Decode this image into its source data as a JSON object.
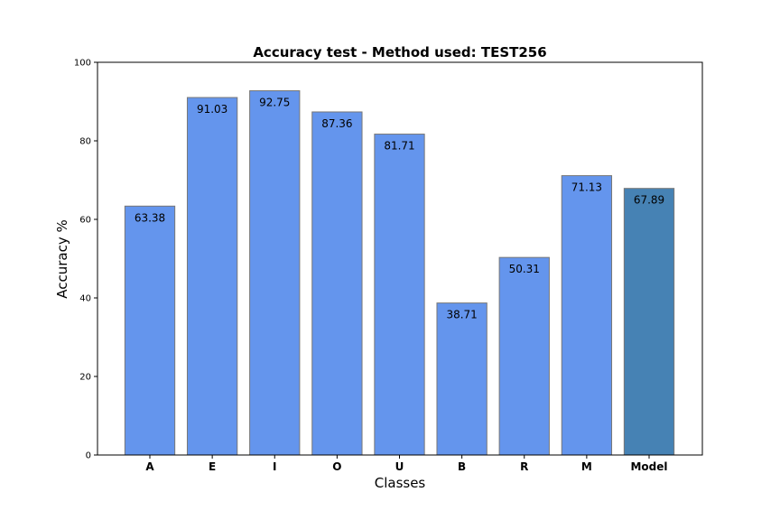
{
  "chart_data": {
    "type": "bar",
    "title": "Accuracy test - Method used: TEST256",
    "xlabel": "Classes",
    "ylabel": "Accuracy %",
    "ylim": [
      0,
      100
    ],
    "yticks": [
      "0",
      "20",
      "40",
      "60",
      "80",
      "100"
    ],
    "categories": [
      "A",
      "E",
      "I",
      "O",
      "U",
      "B",
      "R",
      "M",
      "Model"
    ],
    "values": [
      63.38,
      91.03,
      92.75,
      87.36,
      81.71,
      38.71,
      50.31,
      71.13,
      67.89
    ],
    "value_labels": [
      "63.38",
      "91.03",
      "92.75",
      "87.36",
      "81.71",
      "38.71",
      "50.31",
      "71.13",
      "67.89"
    ],
    "colors": {
      "bar": "#6495ED",
      "highlight_bar": "#4682B4",
      "bar_edge": "#777777"
    },
    "highlight_category": "Model",
    "grid": false,
    "legend": "none"
  }
}
